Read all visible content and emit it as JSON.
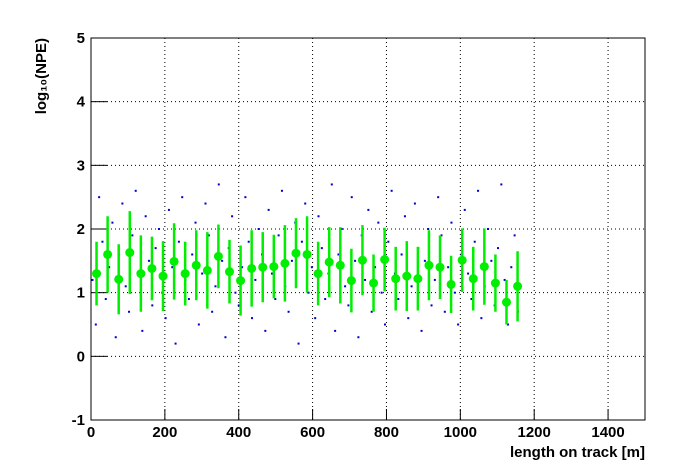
{
  "chart_data": {
    "type": "scatter",
    "x_label": "length on track [m]",
    "y_label": "log₁₀(NPE)",
    "xlim": [
      0,
      1500
    ],
    "xticks": [
      0,
      200,
      400,
      600,
      800,
      1000,
      1200,
      1400
    ],
    "ylim": [
      -1,
      5
    ],
    "yticks": [
      -1,
      0,
      1,
      2,
      3,
      4,
      5
    ],
    "grid": true,
    "series": [
      {
        "type": "scatter",
        "color": "#0000cc",
        "x": [
          4,
          13,
          22,
          31,
          40,
          49,
          58,
          67,
          76,
          85,
          94,
          103,
          112,
          121,
          130,
          139,
          148,
          157,
          166,
          175,
          184,
          193,
          202,
          211,
          220,
          229,
          238,
          247,
          256,
          265,
          274,
          283,
          292,
          301,
          310,
          319,
          328,
          337,
          346,
          355,
          364,
          373,
          382,
          391,
          400,
          409,
          418,
          427,
          436,
          445,
          454,
          463,
          472,
          481,
          490,
          499,
          508,
          517,
          526,
          535,
          544,
          553,
          562,
          571,
          580,
          589,
          598,
          607,
          616,
          625,
          634,
          643,
          652,
          661,
          670,
          679,
          688,
          697,
          706,
          715,
          724,
          733,
          742,
          751,
          760,
          769,
          778,
          787,
          796,
          805,
          814,
          823,
          832,
          841,
          850,
          859,
          868,
          877,
          886,
          895,
          904,
          913,
          922,
          931,
          940,
          949,
          958,
          967,
          976,
          985,
          994,
          1003,
          1012,
          1021,
          1030,
          1039,
          1048,
          1057,
          1066,
          1075,
          1084,
          1093,
          1102,
          1111,
          1120,
          1129,
          1138,
          1147,
          1156
        ],
        "values": [
          1.2,
          0.5,
          2.5,
          1.8,
          0.9,
          1.4,
          2.1,
          0.3,
          1.6,
          2.4,
          1.1,
          0.7,
          1.9,
          2.6,
          1.3,
          0.4,
          2.2,
          1.5,
          0.8,
          1.7,
          2.0,
          1.0,
          0.6,
          2.3,
          1.4,
          0.2,
          1.8,
          2.5,
          1.2,
          0.9,
          1.6,
          2.1,
          0.5,
          1.3,
          2.4,
          1.9,
          0.7,
          1.1,
          2.7,
          1.5,
          0.3,
          1.7,
          2.2,
          1.0,
          0.8,
          1.4,
          2.5,
          1.8,
          0.6,
          1.2,
          2.0,
          1.6,
          0.4,
          2.3,
          1.3,
          0.9,
          1.9,
          2.6,
          1.1,
          0.7,
          1.5,
          2.1,
          0.2,
          1.8,
          2.4,
          1.0,
          1.4,
          0.6,
          2.2,
          1.7,
          0.9,
          1.3,
          2.7,
          0.4,
          1.6,
          2.0,
          1.1,
          0.8,
          2.5,
          1.5,
          0.3,
          1.9,
          1.2,
          2.3,
          0.7,
          1.4,
          2.1,
          1.0,
          0.5,
          1.8,
          2.6,
          1.3,
          0.9,
          1.6,
          2.2,
          0.6,
          1.1,
          2.4,
          1.7,
          0.4,
          1.5,
          2.0,
          0.8,
          1.2,
          2.5,
          1.9,
          0.7,
          1.4,
          2.1,
          1.0,
          0.5,
          1.6,
          2.3,
          1.3,
          0.9,
          1.8,
          2.6,
          0.6,
          1.1,
          2.0,
          1.5,
          0.8,
          1.7,
          2.7,
          1.2,
          0.5,
          1.4,
          1.9,
          0.7
        ]
      },
      {
        "type": "errorbar",
        "color": "#00ee00",
        "x": [
          15,
          45,
          75,
          105,
          135,
          165,
          195,
          225,
          255,
          285,
          315,
          345,
          375,
          405,
          435,
          465,
          495,
          525,
          555,
          585,
          615,
          645,
          675,
          705,
          735,
          765,
          795,
          825,
          855,
          885,
          915,
          945,
          975,
          1005,
          1035,
          1065,
          1095,
          1125,
          1155
        ],
        "values": [
          1.3,
          1.6,
          1.21,
          1.63,
          1.3,
          1.38,
          1.26,
          1.49,
          1.3,
          1.43,
          1.35,
          1.57,
          1.33,
          1.19,
          1.38,
          1.4,
          1.41,
          1.46,
          1.62,
          1.6,
          1.3,
          1.48,
          1.43,
          1.19,
          1.51,
          1.15,
          1.52,
          1.22,
          1.26,
          1.22,
          1.43,
          1.4,
          1.13,
          1.51,
          1.22,
          1.41,
          1.15,
          0.85,
          1.1
        ],
        "errors": [
          0.5,
          0.6,
          0.55,
          0.65,
          0.6,
          0.5,
          0.55,
          0.6,
          0.5,
          0.55,
          0.6,
          0.5,
          0.5,
          0.55,
          0.6,
          0.55,
          0.5,
          0.6,
          0.55,
          0.6,
          0.5,
          0.55,
          0.6,
          0.5,
          0.55,
          0.45,
          0.5,
          0.5,
          0.55,
          0.5,
          0.55,
          0.5,
          0.45,
          0.5,
          0.5,
          0.6,
          0.45,
          0.35,
          0.55
        ]
      }
    ]
  }
}
